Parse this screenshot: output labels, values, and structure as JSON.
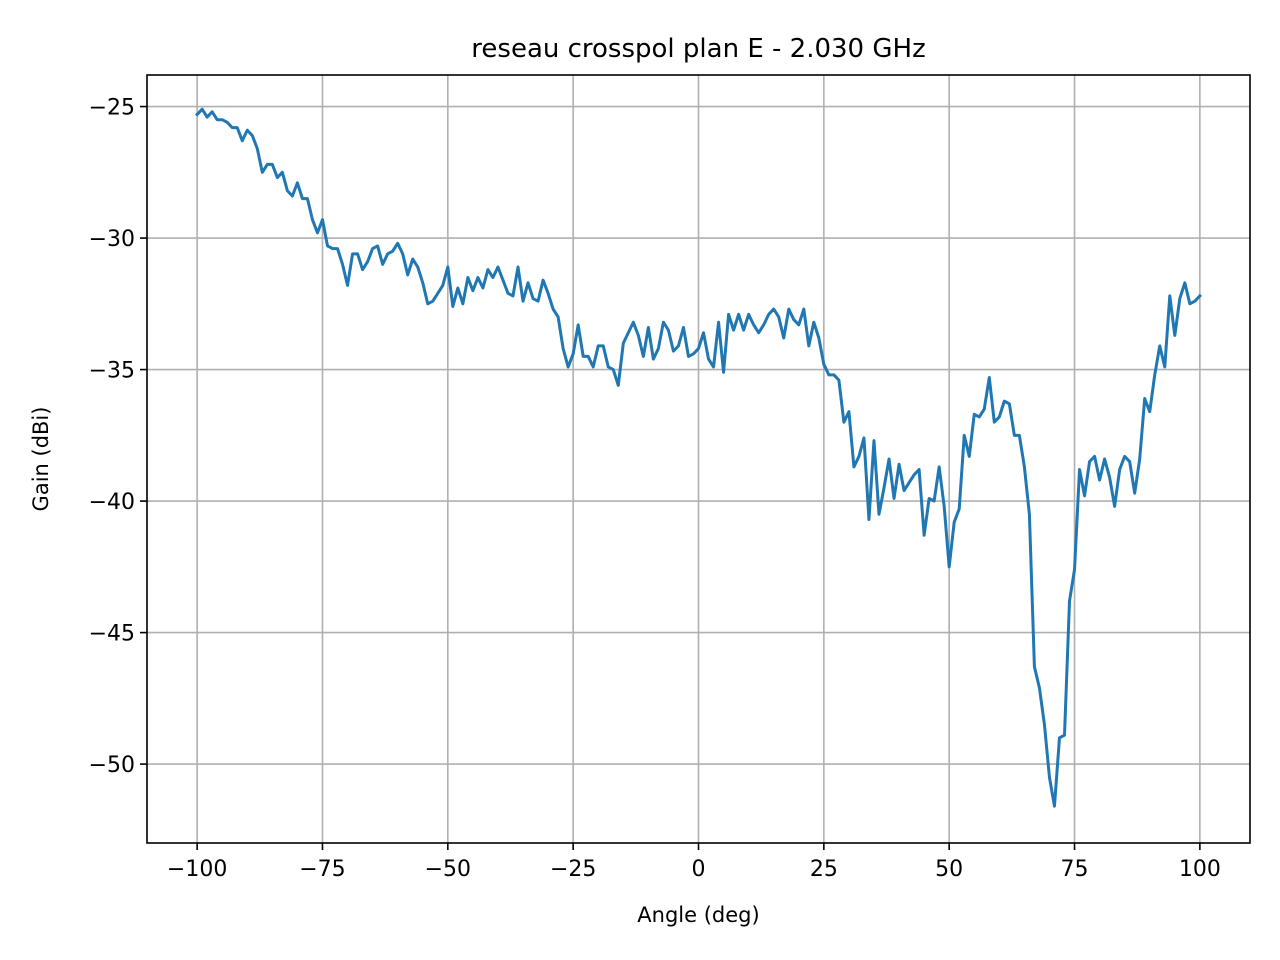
{
  "chart_data": {
    "type": "line",
    "title": "reseau crosspol plan E - 2.030 GHz",
    "xlabel": "Angle (deg)",
    "ylabel": "Gain (dBi)",
    "xlim": [
      -110,
      110
    ],
    "ylim": [
      -53,
      -23.8
    ],
    "xticks": [
      -100,
      -75,
      -50,
      -25,
      0,
      25,
      50,
      75,
      100
    ],
    "xtick_labels": [
      "−100",
      "−75",
      "−50",
      "−25",
      "0",
      "25",
      "50",
      "75",
      "100"
    ],
    "yticks": [
      -50,
      -45,
      -40,
      -35,
      -30,
      -25
    ],
    "ytick_labels": [
      "−50",
      "−45",
      "−40",
      "−35",
      "−30",
      "−25"
    ],
    "grid": true,
    "legend": "none",
    "series": [
      {
        "color": "#1f77b4",
        "x": [
          -100,
          -99,
          -98,
          -97,
          -96,
          -95,
          -94,
          -93,
          -92,
          -91,
          -90,
          -89,
          -88,
          -87,
          -86,
          -85,
          -84,
          -83,
          -82,
          -81,
          -80,
          -79,
          -78,
          -77,
          -76,
          -75,
          -74,
          -73,
          -72,
          -71,
          -70,
          -69,
          -68,
          -67,
          -66,
          -65,
          -64,
          -63,
          -62,
          -61,
          -60,
          -59,
          -58,
          -57,
          -56,
          -55,
          -54,
          -53,
          -52,
          -51,
          -50,
          -49,
          -48,
          -47,
          -46,
          -45,
          -44,
          -43,
          -42,
          -41,
          -40,
          -39,
          -38,
          -37,
          -36,
          -35,
          -34,
          -33,
          -32,
          -31,
          -30,
          -29,
          -28,
          -27,
          -26,
          -25,
          -24,
          -23,
          -22,
          -21,
          -20,
          -19,
          -18,
          -17,
          -16,
          -15,
          -14,
          -13,
          -12,
          -11,
          -10,
          -9,
          -8,
          -7,
          -6,
          -5,
          -4,
          -3,
          -2,
          -1,
          0,
          1,
          2,
          3,
          4,
          5,
          6,
          7,
          8,
          9,
          10,
          11,
          12,
          13,
          14,
          15,
          16,
          17,
          18,
          19,
          20,
          21,
          22,
          23,
          24,
          25,
          26,
          27,
          28,
          29,
          30,
          31,
          32,
          33,
          34,
          35,
          36,
          37,
          38,
          39,
          40,
          41,
          42,
          43,
          44,
          45,
          46,
          47,
          48,
          49,
          50,
          51,
          52,
          53,
          54,
          55,
          56,
          57,
          58,
          59,
          60,
          61,
          62,
          63,
          64,
          65,
          66,
          67,
          68,
          69,
          70,
          71,
          72,
          73,
          74,
          75,
          76,
          77,
          78,
          79,
          80,
          81,
          82,
          83,
          84,
          85,
          86,
          87,
          88,
          89,
          90,
          91,
          92,
          93,
          94,
          95,
          96,
          97,
          98,
          99,
          100
        ],
        "y": [
          -25.3,
          -25.1,
          -25.4,
          -25.2,
          -25.5,
          -25.5,
          -25.6,
          -25.8,
          -25.8,
          -26.3,
          -25.9,
          -26.1,
          -26.6,
          -27.5,
          -27.2,
          -27.2,
          -27.7,
          -27.5,
          -28.2,
          -28.4,
          -27.9,
          -28.5,
          -28.5,
          -29.3,
          -29.8,
          -29.3,
          -30.3,
          -30.4,
          -30.4,
          -31.0,
          -31.8,
          -30.6,
          -30.6,
          -31.2,
          -30.9,
          -30.4,
          -30.3,
          -31.0,
          -30.6,
          -30.5,
          -30.2,
          -30.6,
          -31.4,
          -30.8,
          -31.1,
          -31.7,
          -32.5,
          -32.4,
          -32.1,
          -31.8,
          -31.1,
          -32.6,
          -31.9,
          -32.5,
          -31.5,
          -32.0,
          -31.5,
          -31.9,
          -31.2,
          -31.5,
          -31.1,
          -31.6,
          -32.1,
          -32.2,
          -31.1,
          -32.4,
          -31.7,
          -32.3,
          -32.4,
          -31.6,
          -32.1,
          -32.7,
          -33.0,
          -34.2,
          -34.9,
          -34.4,
          -33.3,
          -34.5,
          -34.5,
          -34.9,
          -34.1,
          -34.1,
          -34.9,
          -35.0,
          -35.6,
          -34.0,
          -33.6,
          -33.2,
          -33.7,
          -34.5,
          -33.4,
          -34.6,
          -34.2,
          -33.2,
          -33.5,
          -34.3,
          -34.1,
          -33.4,
          -34.5,
          -34.4,
          -34.2,
          -33.6,
          -34.6,
          -34.9,
          -33.2,
          -35.1,
          -32.9,
          -33.5,
          -32.9,
          -33.5,
          -32.9,
          -33.3,
          -33.6,
          -33.3,
          -32.9,
          -32.7,
          -33.0,
          -33.8,
          -32.7,
          -33.1,
          -33.3,
          -32.7,
          -34.1,
          -33.2,
          -33.8,
          -34.8,
          -35.2,
          -35.2,
          -35.4,
          -37.0,
          -36.6,
          -38.7,
          -38.3,
          -37.6,
          -40.7,
          -37.7,
          -40.5,
          -39.5,
          -38.4,
          -39.9,
          -38.6,
          -39.6,
          -39.3,
          -39.0,
          -38.8,
          -41.3,
          -39.9,
          -40.0,
          -38.7,
          -40.2,
          -42.5,
          -40.8,
          -40.3,
          -37.5,
          -38.3,
          -36.7,
          -36.8,
          -36.5,
          -35.3,
          -37.0,
          -36.8,
          -36.2,
          -36.3,
          -37.5,
          -37.5,
          -38.7,
          -40.5,
          -46.3,
          -47.1,
          -48.5,
          -50.5,
          -51.6,
          -49.0,
          -48.9,
          -43.8,
          -42.6,
          -38.8,
          -39.8,
          -38.5,
          -38.3,
          -39.2,
          -38.4,
          -39.1,
          -40.2,
          -38.8,
          -38.3,
          -38.5,
          -39.7,
          -38.4,
          -36.1,
          -36.6,
          -35.2,
          -34.1,
          -34.9,
          -32.2,
          -33.7,
          -32.3,
          -31.7,
          -32.5,
          -32.4,
          -32.2
        ]
      }
    ]
  }
}
